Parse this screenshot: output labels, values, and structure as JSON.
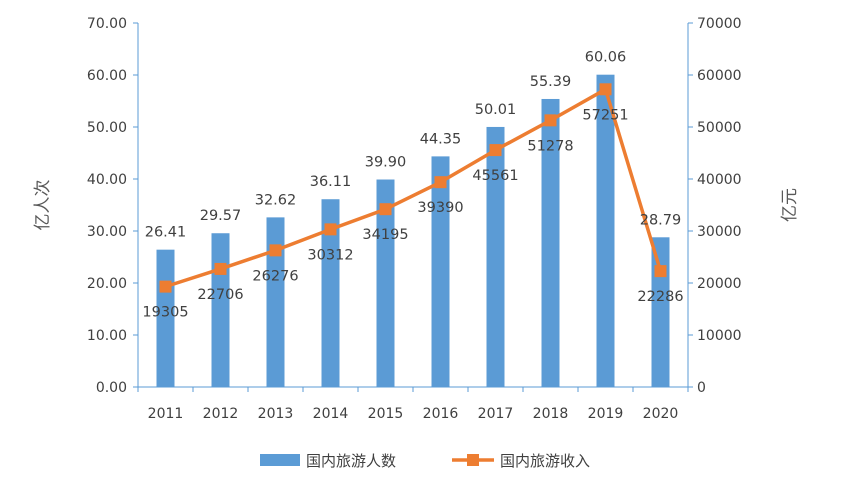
{
  "chart_data": {
    "type": "bar",
    "categories": [
      "2011",
      "2012",
      "2013",
      "2014",
      "2015",
      "2016",
      "2017",
      "2018",
      "2019",
      "2020"
    ],
    "series": [
      {
        "name": "国内旅游人数",
        "type": "bar",
        "axis": "left",
        "color": "#5B9BD5",
        "values": [
          26.41,
          29.57,
          32.62,
          36.11,
          39.9,
          44.35,
          50.01,
          55.39,
          60.06,
          28.79
        ],
        "labels": [
          "26.41",
          "29.57",
          "32.62",
          "36.11",
          "39.90",
          "44.35",
          "50.01",
          "55.39",
          "60.06",
          "28.79"
        ]
      },
      {
        "name": "国内旅游收入",
        "type": "line",
        "axis": "right",
        "color": "#ED7D31",
        "values": [
          19305,
          22706,
          26276,
          30312,
          34195,
          39390,
          45561,
          51278,
          57251,
          22286
        ],
        "labels": [
          "19305",
          "22706",
          "26276",
          "30312",
          "34195",
          "39390",
          "45561",
          "51278",
          "57251",
          "22286"
        ]
      }
    ],
    "y_left": {
      "label": "亿人次",
      "ylim": [
        0,
        70
      ],
      "ticks": [
        "0.00",
        "10.00",
        "20.00",
        "30.00",
        "40.00",
        "50.00",
        "60.00",
        "70.00"
      ]
    },
    "y_right": {
      "label": "亿元",
      "ylim": [
        0,
        70000
      ],
      "ticks": [
        "0",
        "10000",
        "20000",
        "30000",
        "40000",
        "50000",
        "60000",
        "70000"
      ]
    },
    "axis_color": "#5B9BD5",
    "grid": false,
    "legend_position": "bottom"
  }
}
